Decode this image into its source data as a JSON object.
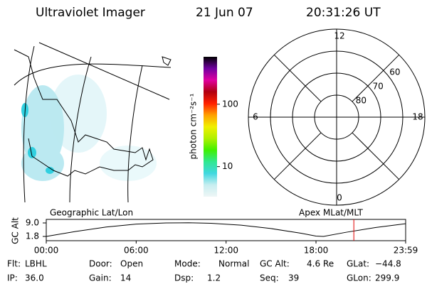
{
  "header": {
    "title": "Ultraviolet Imager",
    "date": "21 Jun 07",
    "time": "20:31:26 UT"
  },
  "map": {
    "title": "Geographic Lat/Lon"
  },
  "colorbar": {
    "label": "photon cm⁻²s⁻¹",
    "log": true,
    "lim": [
      3.3,
      575
    ],
    "ticks": [
      10,
      100
    ],
    "colors": [
      "#eef6f6",
      "#c8eef0",
      "#40d8e0",
      "#30e890",
      "#40f000",
      "#b0f000",
      "#f0f000",
      "#ffa000",
      "#ff2000",
      "#b00010",
      "#e000a0",
      "#7000a0",
      "#000000"
    ]
  },
  "polar": {
    "title": "Apex MLat/MLT",
    "rlim": [
      50,
      90
    ],
    "lat_ticks": [
      60,
      70,
      80
    ],
    "mlt_ticks": [
      12,
      18,
      6,
      0
    ]
  },
  "altitude": {
    "ylabel": "GC Alt",
    "ylim": [
      1.8,
      9.0
    ],
    "yticks": [
      {
        "value": 9,
        "label": "9.0"
      },
      1.8
    ],
    "xlim": [
      0,
      23.983
    ],
    "xticks": [
      {
        "value": 0,
        "label": "00:00"
      },
      {
        "value": 6,
        "label": "06:00"
      },
      {
        "value": 12,
        "label": "12:00"
      },
      {
        "value": 18,
        "label": "18:00"
      },
      {
        "value": 23.983,
        "label": "23:59"
      }
    ],
    "x": [
      0,
      2,
      4,
      6,
      8,
      9.5,
      11,
      13,
      15,
      17,
      18,
      18.5,
      20,
      22,
      24
    ],
    "values": [
      1.8,
      4.5,
      6.8,
      8.4,
      9.0,
      9.1,
      8.8,
      7.8,
      6.0,
      3.5,
      2.0,
      1.8,
      4.0,
      6.6,
      8.6
    ],
    "marker_x": 20.525,
    "line_color": "#000000",
    "marker_color": "#e00000"
  },
  "info": [
    [
      {
        "label": "Flt:",
        "value": "LBHL"
      },
      {
        "label": "Door:",
        "value": "Open"
      },
      {
        "label": "Mode:",
        "value": "Normal"
      },
      {
        "label": "GC Alt:",
        "value": "4.6 Re"
      },
      {
        "label": "GLat:",
        "value": "−44.8"
      }
    ],
    [
      {
        "label": "IP:",
        "value": "36.0"
      },
      {
        "label": "Gain:",
        "value": "14"
      },
      {
        "label": "Dsp:",
        "value": "1.2"
      },
      {
        "label": "Seq:",
        "value": "39"
      },
      {
        "label": "GLon:",
        "value": "299.9"
      }
    ]
  ]
}
